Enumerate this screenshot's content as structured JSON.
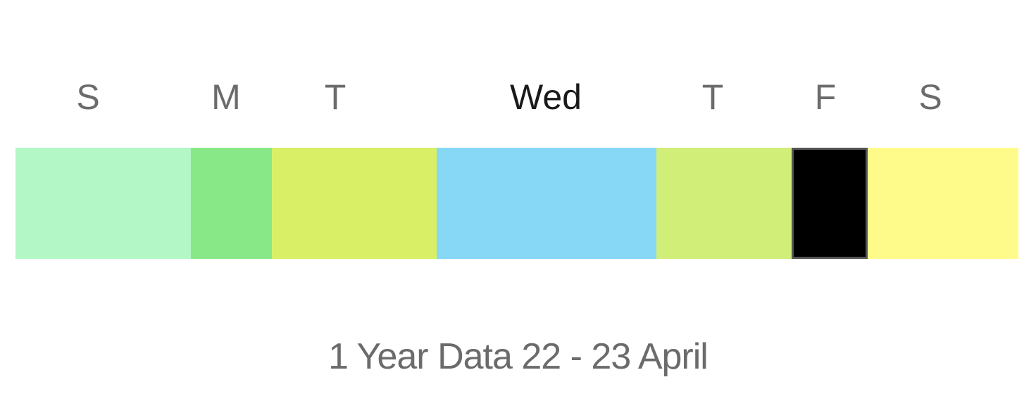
{
  "week": {
    "days": [
      {
        "label": "S",
        "color": "#b4f7c6",
        "active": false
      },
      {
        "label": "M",
        "color": "#88e888",
        "active": false
      },
      {
        "label": "T",
        "color": "#d9f066",
        "active": false
      },
      {
        "label": "Wed",
        "color": "#87d7f6",
        "active": true
      },
      {
        "label": "T",
        "color": "#d1ee78",
        "active": false
      },
      {
        "label": "F",
        "color": "#000000",
        "active": false
      },
      {
        "label": "S",
        "color": "#fffb8a",
        "active": false
      }
    ]
  },
  "caption": "1 Year Data 22 - 23 April"
}
